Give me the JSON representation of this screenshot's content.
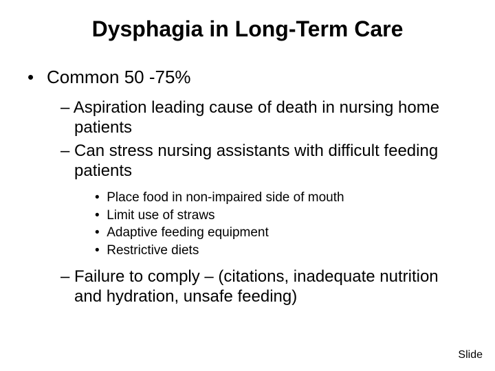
{
  "title": "Dysphagia in Long-Term Care",
  "level1": {
    "text": "Common 50 -75%"
  },
  "level2_a": "Aspiration leading cause of death in nursing home patients",
  "level2_b": "Can stress nursing assistants with difficult feeding patients",
  "level3": {
    "a": "Place food in non-impaired side of mouth",
    "b": "Limit use of straws",
    "c": "Adaptive feeding equipment",
    "d": "Restrictive diets"
  },
  "level2_c": "Failure to comply – (citations, inadequate nutrition and hydration, unsafe feeding)",
  "footer": "Slide",
  "colors": {
    "background": "#ffffff",
    "text": "#000000"
  },
  "fonts": {
    "title_size": 32,
    "level1_size": 26,
    "level2_size": 24,
    "level3_size": 19,
    "footer_size": 16
  }
}
